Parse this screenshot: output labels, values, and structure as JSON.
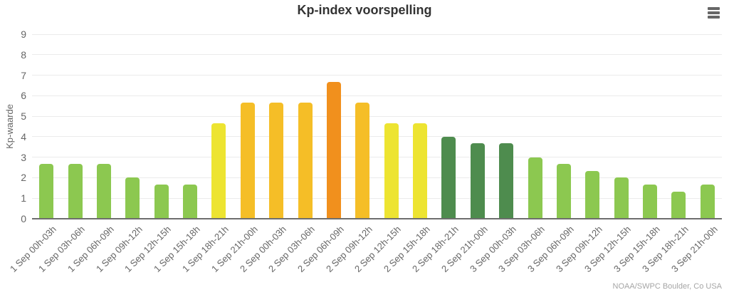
{
  "header": {
    "title": "Kp-index voorspelling",
    "menu_icon": "hamburger-icon"
  },
  "credits": "NOAA/SWPC Boulder, Co USA",
  "palette": {
    "green": "#8CC850",
    "dark_green": "#4E8C4E",
    "yellow": "#EDE431",
    "amber": "#F5BE27",
    "orange": "#F1901D",
    "grid_color": "#EBEBEB",
    "axis_line_color": "#6E6E6E",
    "tick_label_color": "#666666",
    "title_color": "#333333",
    "credits_color": "#A5A5A5"
  },
  "chart_data": {
    "type": "bar",
    "title": "Kp-index voorspelling",
    "xlabel": "",
    "ylabel": "Kp-waarde",
    "ylim": [
      0,
      9
    ],
    "yticks": [
      0,
      1,
      2,
      3,
      4,
      5,
      6,
      7,
      8,
      9
    ],
    "grid": true,
    "legend": false,
    "categories": [
      "1 Sep 00h-03h",
      "1 Sep 03h-06h",
      "1 Sep 06h-09h",
      "1 Sep 09h-12h",
      "1 Sep 12h-15h",
      "1 Sep 15h-18h",
      "1 Sep 18h-21h",
      "1 Sep 21h-00h",
      "2 Sep 00h-03h",
      "2 Sep 03h-06h",
      "2 Sep 06h-09h",
      "2 Sep 09h-12h",
      "2 Sep 12h-15h",
      "2 Sep 15h-18h",
      "2 Sep 18h-21h",
      "2 Sep 21h-00h",
      "3 Sep 00h-03h",
      "3 Sep 03h-06h",
      "3 Sep 06h-09h",
      "3 Sep 09h-12h",
      "3 Sep 12h-15h",
      "3 Sep 15h-18h",
      "3 Sep 18h-21h",
      "3 Sep 21h-00h"
    ],
    "values": [
      2.67,
      2.67,
      2.67,
      2,
      1.67,
      1.67,
      4.67,
      5.67,
      5.67,
      5.67,
      6.67,
      5.67,
      4.67,
      4.67,
      4,
      3.67,
      3.67,
      3,
      2.67,
      2.33,
      2,
      1.67,
      1.33,
      1.67
    ],
    "bar_colors": [
      "green",
      "green",
      "green",
      "green",
      "green",
      "green",
      "yellow",
      "amber",
      "amber",
      "amber",
      "orange",
      "amber",
      "yellow",
      "yellow",
      "dark_green",
      "dark_green",
      "dark_green",
      "green",
      "green",
      "green",
      "green",
      "green",
      "green",
      "green"
    ]
  }
}
